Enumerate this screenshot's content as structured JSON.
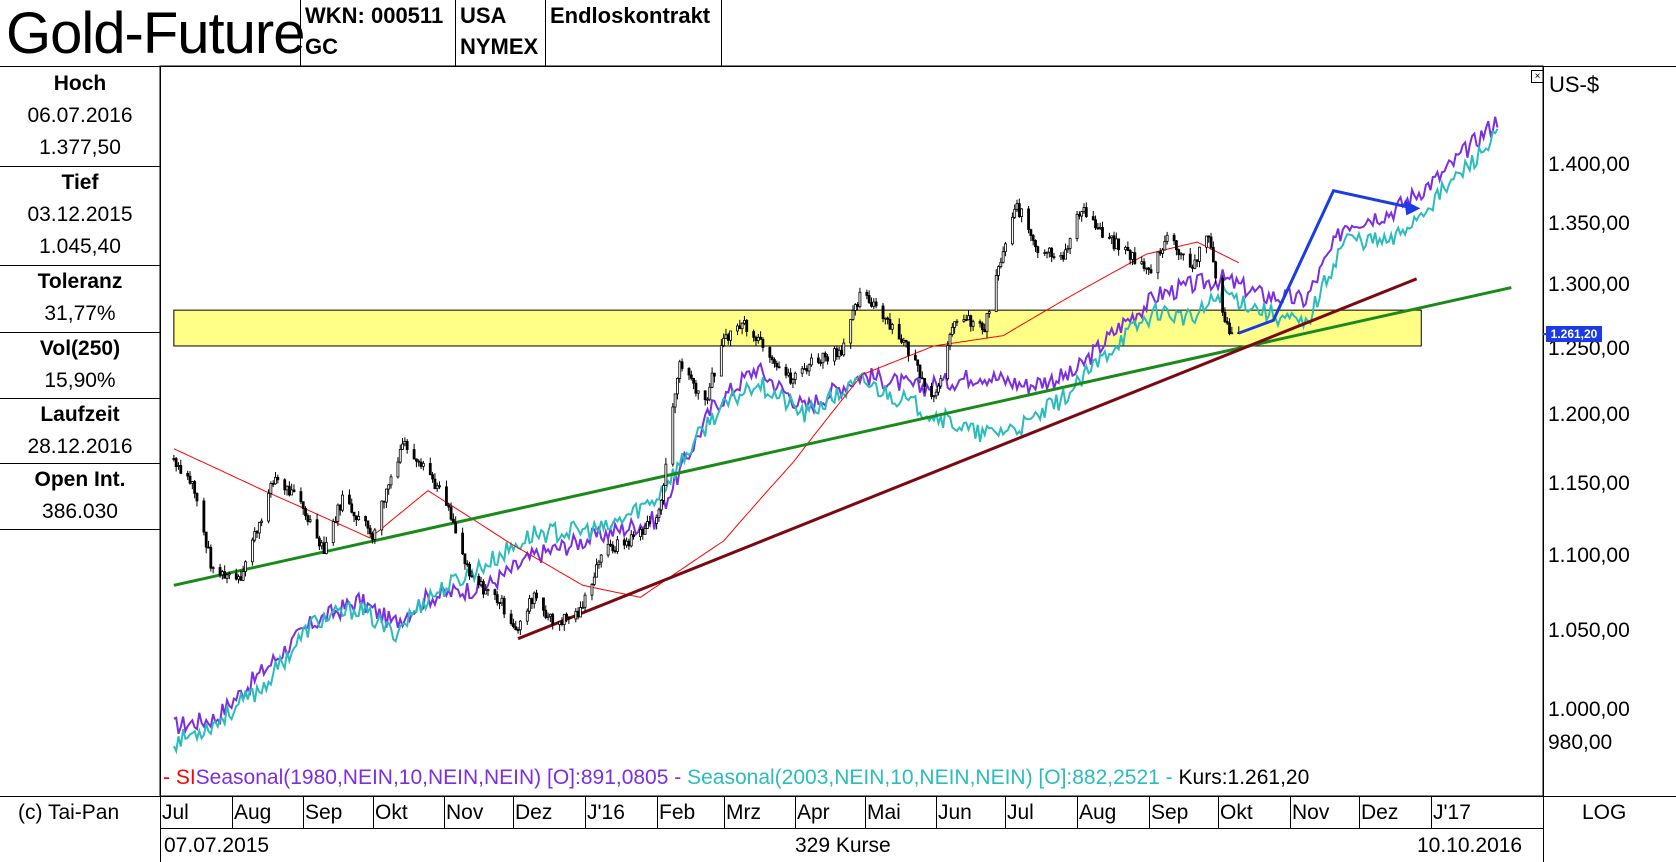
{
  "header": {
    "title": "Gold-Future",
    "wkn": "WKN: 000511",
    "symbol": "GC",
    "country": "USA",
    "exchange": "NYMEX",
    "contract": "Endloskontrakt"
  },
  "sidebar": [
    {
      "label": "Hoch",
      "values": [
        "06.07.2016",
        "1.377,50"
      ]
    },
    {
      "label": "Tief",
      "values": [
        "03.12.2015",
        "1.045,40"
      ]
    },
    {
      "label": "Toleranz",
      "values": [
        "31,77%"
      ]
    },
    {
      "label": "Vol(250)",
      "values": [
        "15,90%"
      ]
    },
    {
      "label": "Laufzeit",
      "values": [
        "28.12.2016"
      ]
    },
    {
      "label": "Open Int.",
      "values": [
        "386.030"
      ]
    }
  ],
  "footer": {
    "copyright": "(c) Tai-Pan",
    "scale": "LOG",
    "start_date": "07.07.2015",
    "end_date": "10.10.2016",
    "count": "329 Kurse"
  },
  "legend": {
    "sma": "- SI",
    "seasonal1": "Seasonal(1980,NEIN,10,NEIN,NEIN) [O]:891,0805 -",
    "seasonal2": "Seasonal(2003,NEIN,10,NEIN,NEIN) [O]:882,2521 -",
    "kurs": "Kurs:1.261,20"
  },
  "colors": {
    "candles": "#000000",
    "sma": "#ff0000",
    "seasonal1980": "#7b2fe0",
    "seasonal2003": "#2bbcbc",
    "trend_green": "#1a8a1a",
    "trend_dark_red": "#7a0a12",
    "zone_fill": "#ffff88",
    "forecast_arrow": "#1a3be6",
    "price_marker": "#1a3be6"
  },
  "chart_data": {
    "type": "candlestick",
    "title": "Gold-Future",
    "ylabel": "US-$",
    "yscale": "log",
    "ylim": [
      960,
      1450
    ],
    "y_ticks": [
      "1.400,00",
      "1.350,00",
      "1.300,00",
      "1.250,00",
      "1.200,00",
      "1.150,00",
      "1.100,00",
      "1.050,00",
      "1.000,00",
      "980,00"
    ],
    "y_tick_values": [
      1400,
      1350,
      1300,
      1250,
      1200,
      1150,
      1100,
      1050,
      1000,
      980
    ],
    "x_ticks": [
      "Jul",
      "Aug",
      "Sep",
      "Okt",
      "Nov",
      "Dez",
      "J'16",
      "Feb",
      "Mrz",
      "Apr",
      "Mai",
      "Jun",
      "Jul",
      "Aug",
      "Sep",
      "Okt",
      "Nov",
      "Dez",
      "J'17"
    ],
    "last_price_label": "1.261,20",
    "last_price": 1261.2,
    "price_anchors": [
      [
        "2015-07-07",
        1168
      ],
      [
        "2015-07-15",
        1150
      ],
      [
        "2015-07-24",
        1088
      ],
      [
        "2015-08-05",
        1087
      ],
      [
        "2015-08-20",
        1155
      ],
      [
        "2015-08-31",
        1135
      ],
      [
        "2015-09-10",
        1105
      ],
      [
        "2015-09-18",
        1140
      ],
      [
        "2015-10-01",
        1115
      ],
      [
        "2015-10-14",
        1180
      ],
      [
        "2015-10-23",
        1165
      ],
      [
        "2015-11-02",
        1135
      ],
      [
        "2015-11-12",
        1085
      ],
      [
        "2015-11-25",
        1070
      ],
      [
        "2015-12-03",
        1050
      ],
      [
        "2015-12-10",
        1075
      ],
      [
        "2015-12-18",
        1055
      ],
      [
        "2015-12-30",
        1062
      ],
      [
        "2016-01-08",
        1102
      ],
      [
        "2016-01-20",
        1110
      ],
      [
        "2016-02-02",
        1128
      ],
      [
        "2016-02-11",
        1240
      ],
      [
        "2016-02-22",
        1210
      ],
      [
        "2016-03-02",
        1260
      ],
      [
        "2016-03-10",
        1270
      ],
      [
        "2016-03-18",
        1255
      ],
      [
        "2016-03-30",
        1225
      ],
      [
        "2016-04-08",
        1240
      ],
      [
        "2016-04-21",
        1250
      ],
      [
        "2016-04-29",
        1290
      ],
      [
        "2016-05-06",
        1285
      ],
      [
        "2016-05-18",
        1255
      ],
      [
        "2016-05-31",
        1213
      ],
      [
        "2016-06-10",
        1275
      ],
      [
        "2016-06-22",
        1265
      ],
      [
        "2016-06-29",
        1320
      ],
      [
        "2016-07-06",
        1365
      ],
      [
        "2016-07-15",
        1330
      ],
      [
        "2016-07-27",
        1325
      ],
      [
        "2016-08-03",
        1365
      ],
      [
        "2016-08-12",
        1340
      ],
      [
        "2016-08-24",
        1325
      ],
      [
        "2016-09-01",
        1310
      ],
      [
        "2016-09-09",
        1340
      ],
      [
        "2016-09-20",
        1315
      ],
      [
        "2016-09-27",
        1340
      ],
      [
        "2016-10-04",
        1268
      ],
      [
        "2016-10-10",
        1261
      ]
    ],
    "sma_anchors": [
      [
        "2015-07-07",
        1175
      ],
      [
        "2015-08-15",
        1145
      ],
      [
        "2015-09-30",
        1112
      ],
      [
        "2015-10-25",
        1145
      ],
      [
        "2015-11-30",
        1108
      ],
      [
        "2015-12-31",
        1080
      ],
      [
        "2016-01-25",
        1072
      ],
      [
        "2016-03-01",
        1110
      ],
      [
        "2016-03-31",
        1165
      ],
      [
        "2016-04-30",
        1230
      ],
      [
        "2016-05-31",
        1252
      ],
      [
        "2016-06-30",
        1260
      ],
      [
        "2016-07-31",
        1293
      ],
      [
        "2016-08-31",
        1325
      ],
      [
        "2016-09-22",
        1335
      ],
      [
        "2016-10-10",
        1318
      ]
    ],
    "seasonal_1980": [
      [
        "2015-07-07",
        990
      ],
      [
        "2015-07-25",
        995
      ],
      [
        "2015-08-15",
        1025
      ],
      [
        "2015-09-05",
        1055
      ],
      [
        "2015-09-25",
        1070
      ],
      [
        "2015-10-10",
        1055
      ],
      [
        "2015-10-25",
        1072
      ],
      [
        "2015-11-20",
        1080
      ],
      [
        "2015-12-10",
        1100
      ],
      [
        "2016-01-10",
        1115
      ],
      [
        "2016-02-01",
        1125
      ],
      [
        "2016-02-25",
        1205
      ],
      [
        "2016-03-15",
        1235
      ],
      [
        "2016-04-05",
        1205
      ],
      [
        "2016-04-30",
        1230
      ],
      [
        "2016-05-25",
        1220
      ],
      [
        "2016-06-20",
        1230
      ],
      [
        "2016-07-10",
        1222
      ],
      [
        "2016-07-30",
        1230
      ],
      [
        "2016-08-20",
        1268
      ],
      [
        "2016-09-05",
        1292
      ],
      [
        "2016-09-20",
        1300
      ],
      [
        "2016-10-03",
        1305
      ],
      [
        "2016-10-20",
        1292
      ],
      [
        "2016-11-08",
        1288
      ],
      [
        "2016-11-25",
        1350
      ],
      [
        "2016-12-15",
        1360
      ],
      [
        "2017-01-05",
        1390
      ],
      [
        "2017-01-30",
        1440
      ]
    ],
    "seasonal_2003": [
      [
        "2015-07-07",
        980
      ],
      [
        "2015-07-25",
        992
      ],
      [
        "2015-08-15",
        1015
      ],
      [
        "2015-09-05",
        1055
      ],
      [
        "2015-09-25",
        1065
      ],
      [
        "2015-10-10",
        1048
      ],
      [
        "2015-10-25",
        1072
      ],
      [
        "2015-11-20",
        1095
      ],
      [
        "2015-12-10",
        1115
      ],
      [
        "2016-01-10",
        1118
      ],
      [
        "2016-02-01",
        1140
      ],
      [
        "2016-02-25",
        1198
      ],
      [
        "2016-03-15",
        1225
      ],
      [
        "2016-04-05",
        1200
      ],
      [
        "2016-04-30",
        1225
      ],
      [
        "2016-05-25",
        1205
      ],
      [
        "2016-06-20",
        1185
      ],
      [
        "2016-07-10",
        1192
      ],
      [
        "2016-07-30",
        1218
      ],
      [
        "2016-08-20",
        1258
      ],
      [
        "2016-09-05",
        1280
      ],
      [
        "2016-09-20",
        1272
      ],
      [
        "2016-10-03",
        1295
      ],
      [
        "2016-10-20",
        1280
      ],
      [
        "2016-11-08",
        1268
      ],
      [
        "2016-11-25",
        1338
      ],
      [
        "2016-12-15",
        1335
      ],
      [
        "2017-01-05",
        1375
      ],
      [
        "2017-01-30",
        1425
      ]
    ],
    "trend_lines": [
      {
        "name": "green",
        "from": [
          "2015-07-07",
          1080
        ],
        "to": [
          "2017-02-05",
          1298
        ]
      },
      {
        "name": "dark-red",
        "from": [
          "2015-12-03",
          1045
        ],
        "to": [
          "2016-12-26",
          1305
        ]
      }
    ],
    "zone": {
      "from": "2015-07-07",
      "to": "2016-12-28",
      "low": 1252,
      "high": 1280
    },
    "forecast": [
      [
        "2016-10-10",
        1262
      ],
      [
        "2016-10-25",
        1272
      ],
      [
        "2016-11-20",
        1378
      ],
      [
        "2016-12-25",
        1363
      ]
    ]
  }
}
